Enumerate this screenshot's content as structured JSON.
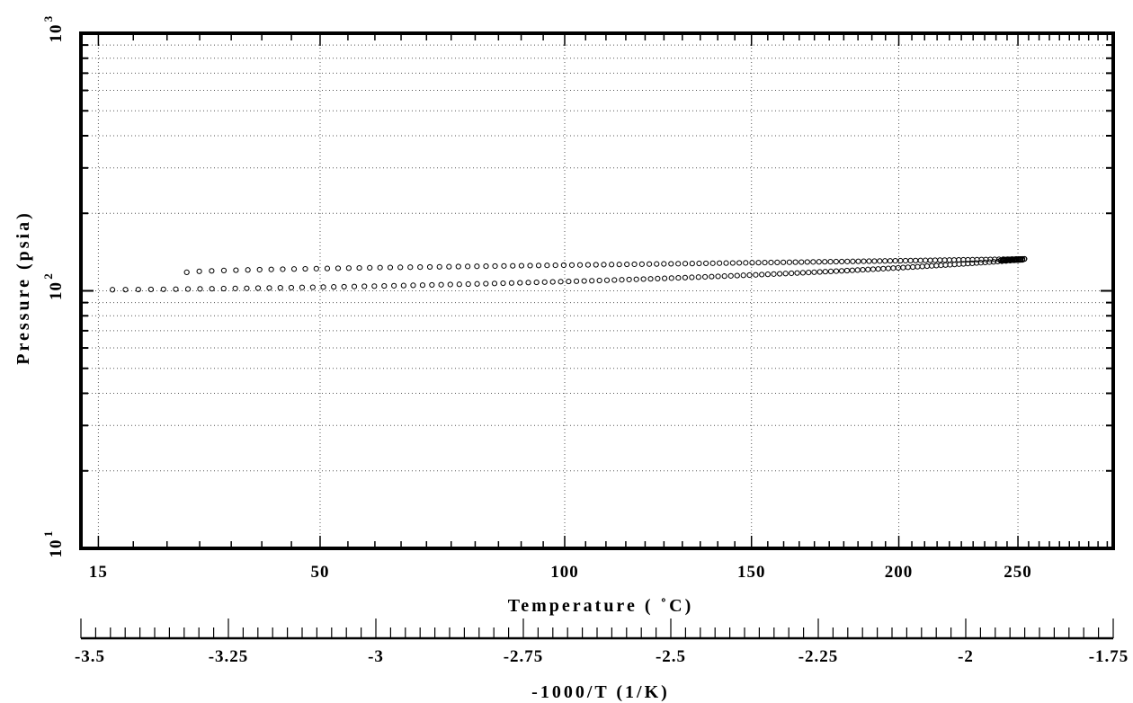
{
  "chart_data": {
    "type": "scatter",
    "title": "",
    "xlabel": "Temperature  ( ˚C)",
    "ylabel": "Pressure  (psia)",
    "x2label": "-1000/T  (1/K)",
    "y_scale": "log",
    "ylim": [
      10,
      1000
    ],
    "y_tick_labels": [
      {
        "value": 1000,
        "base": "10",
        "exp": "3"
      },
      {
        "value": 100,
        "base": "10",
        "exp": "2"
      },
      {
        "value": 10,
        "base": "10",
        "exp": "1"
      }
    ],
    "x_scale": "reciprocal-kelvin",
    "xlim_inv_T": [
      -3.5,
      -1.75
    ],
    "x_tick_labels": [
      "15",
      "50",
      "100",
      "150",
      "200",
      "250"
    ],
    "x2_tick_labels": [
      "-3.5",
      "-3.25",
      "-3",
      "-2.75",
      "-2.5",
      "-2.25",
      "-2",
      "-1.75"
    ],
    "grid": true,
    "series": [
      {
        "marker": "open-circle",
        "x_start": 28,
        "x_end": 253,
        "y_start": 118,
        "y_end": 133
      },
      {
        "marker": "open-circle",
        "x_start": 17,
        "x_end": 252,
        "y_start": 101,
        "y_end": 132
      }
    ]
  }
}
